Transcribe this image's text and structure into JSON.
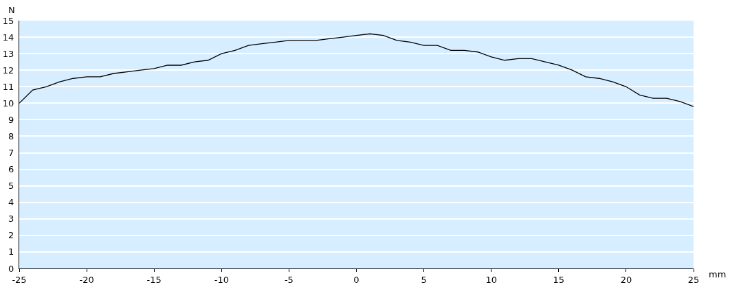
{
  "chart_data": {
    "type": "line",
    "xlabel": "mm",
    "ylabel": "N",
    "x": [
      -25,
      -24,
      -23,
      -22,
      -21,
      -20,
      -19,
      -18,
      -17,
      -16,
      -15,
      -14,
      -13,
      -12,
      -11,
      -10,
      -9,
      -8,
      -7,
      -6,
      -5,
      -4,
      -3,
      -2,
      -1,
      0,
      1,
      2,
      3,
      4,
      5,
      6,
      7,
      8,
      9,
      10,
      11,
      12,
      13,
      14,
      15,
      16,
      17,
      18,
      19,
      20,
      21,
      22,
      23,
      24,
      25
    ],
    "series": [
      {
        "color": "#000000",
        "values": [
          10.0,
          10.8,
          11.0,
          11.3,
          11.5,
          11.6,
          11.6,
          11.8,
          11.9,
          12.0,
          12.1,
          12.3,
          12.3,
          12.5,
          12.6,
          13.0,
          13.2,
          13.5,
          13.6,
          13.7,
          13.8,
          13.8,
          13.8,
          13.9,
          14.0,
          14.1,
          14.2,
          14.1,
          13.8,
          13.7,
          13.5,
          13.5,
          13.2,
          13.2,
          13.1,
          12.8,
          12.6,
          12.7,
          12.7,
          12.5,
          12.3,
          12.0,
          11.6,
          11.5,
          11.3,
          11.0,
          10.5,
          10.3,
          10.3,
          10.1,
          9.8
        ]
      }
    ],
    "xlim": [
      -25,
      25
    ],
    "xticks": [
      -25,
      -20,
      -15,
      -10,
      -5,
      0,
      5,
      10,
      15,
      20,
      25
    ],
    "ylim": [
      0,
      15
    ],
    "yticks": [
      0,
      1,
      2,
      3,
      4,
      5,
      6,
      7,
      8,
      9,
      10,
      11,
      12,
      13,
      14,
      15
    ],
    "grid": "y",
    "marker": "none",
    "line_style": "solid"
  }
}
